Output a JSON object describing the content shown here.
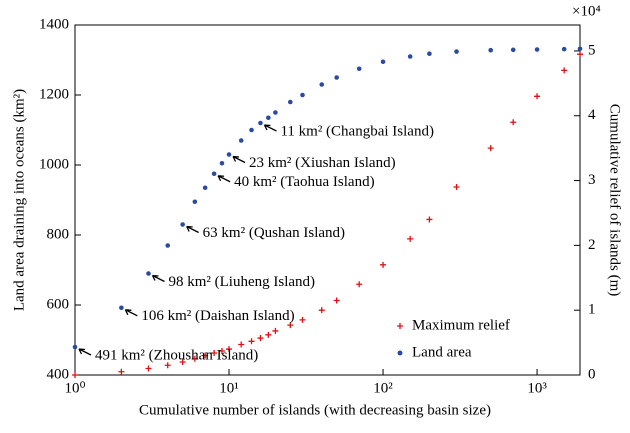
{
  "chart_data": {
    "type": "scatter",
    "xlabel": "Cumulative number of islands (with decreasing basin size)",
    "ylabel": "Land area draining into oceans (km²)",
    "y2label": "Cumulative relief of islands (m)",
    "y2_multiplier": "×10⁴",
    "x_log": true,
    "xlim": [
      1,
      1900
    ],
    "xticks": [
      {
        "value": 1,
        "label": "10⁰"
      },
      {
        "value": 10,
        "label": "10¹"
      },
      {
        "value": 100,
        "label": "10²"
      },
      {
        "value": 1000,
        "label": "10³"
      }
    ],
    "ylim": [
      400,
      1400
    ],
    "yticks": [
      400,
      600,
      800,
      1000,
      1200,
      1400
    ],
    "y2lim": [
      0,
      5.4
    ],
    "y2ticks": [
      0,
      1,
      2,
      3,
      4,
      5
    ],
    "legend": "lower right",
    "x": [
      1,
      2,
      3,
      4,
      5,
      6,
      7,
      8,
      9,
      10,
      12,
      14,
      16,
      18,
      20,
      25,
      30,
      40,
      50,
      70,
      100,
      150,
      200,
      300,
      500,
      700,
      1000,
      1500,
      1900
    ],
    "series": [
      {
        "name": "Maximum relief",
        "color": "#e01010",
        "axis": "y2",
        "values": [
          0,
          0.05,
          0.1,
          0.15,
          0.2,
          0.25,
          0.3,
          0.34,
          0.37,
          0.4,
          0.47,
          0.52,
          0.57,
          0.62,
          0.68,
          0.77,
          0.85,
          1.0,
          1.15,
          1.4,
          1.7,
          2.1,
          2.4,
          2.9,
          3.5,
          3.9,
          4.3,
          4.7,
          4.95
        ]
      },
      {
        "name": "Land area",
        "color": "#2a4ba0",
        "values": [
          480,
          592,
          690,
          770,
          830,
          895,
          935,
          975,
          1005,
          1030,
          1070,
          1100,
          1120,
          1135,
          1150,
          1180,
          1200,
          1230,
          1250,
          1275,
          1295,
          1310,
          1318,
          1324,
          1328,
          1329,
          1330,
          1331,
          1332
        ]
      }
    ],
    "annotations": [
      "491 km² (Zhoushan Island)",
      "106 km² (Daishan Island)",
      "98 km² (Liuheng Island)",
      "63 km² (Qushan Island)",
      "40 km² (Taohua Island)",
      "23 km² (Xiushan Island)",
      "11 km² (Changbai Island)"
    ]
  }
}
